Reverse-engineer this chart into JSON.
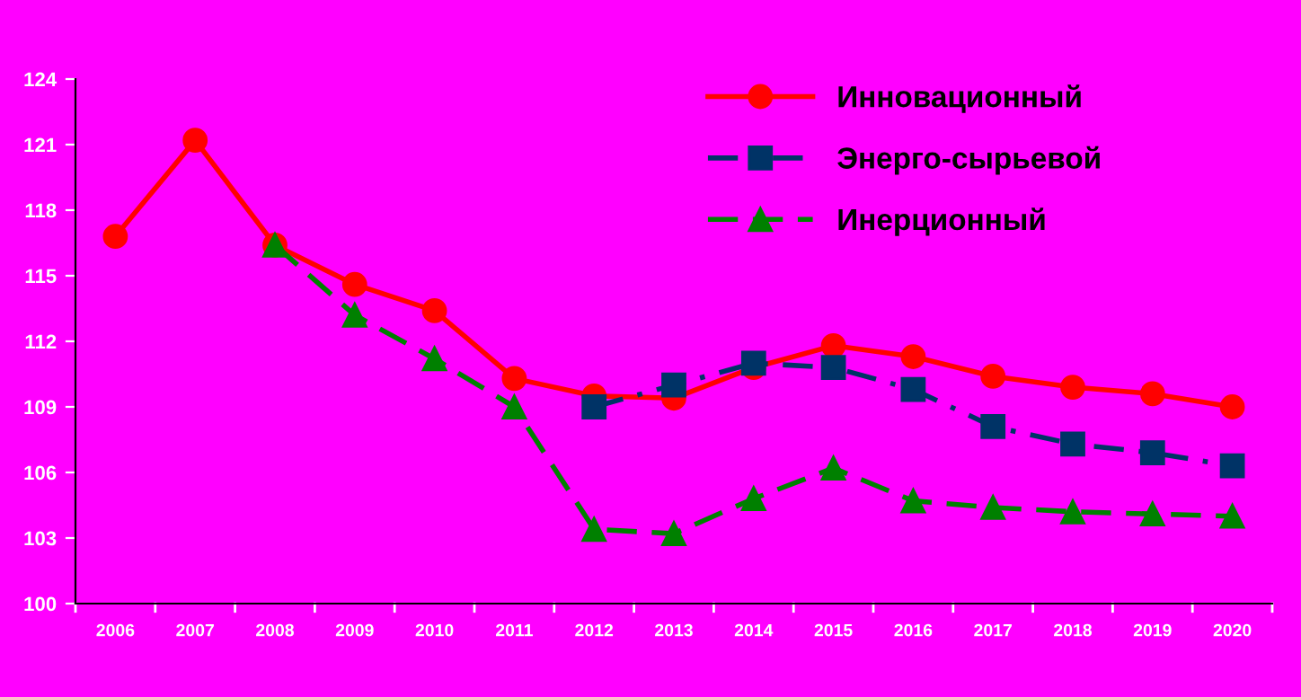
{
  "chart_data": {
    "type": "line",
    "categories": [
      "2006",
      "2007",
      "2008",
      "2009",
      "2010",
      "2011",
      "2012",
      "2013",
      "2014",
      "2015",
      "2016",
      "2017",
      "2018",
      "2019",
      "2020"
    ],
    "ylim": [
      100,
      124
    ],
    "yticks": [
      100,
      103,
      106,
      109,
      112,
      115,
      118,
      121,
      124
    ],
    "grid": false,
    "legend": "top right",
    "series": [
      {
        "name": "Инновационный",
        "color": "#ff0000",
        "marker": "circle",
        "line_style": "solid",
        "values": [
          116.8,
          121.2,
          116.4,
          114.6,
          113.4,
          110.3,
          109.5,
          109.4,
          110.8,
          111.8,
          111.3,
          110.4,
          109.9,
          109.6,
          109.0
        ]
      },
      {
        "name": "Энерго-сырьевой",
        "color": "#003366",
        "marker": "square",
        "line_style": "dashdot",
        "values": [
          null,
          null,
          null,
          null,
          null,
          null,
          109.0,
          110.0,
          111.0,
          110.8,
          109.8,
          108.1,
          107.3,
          106.9,
          106.3
        ]
      },
      {
        "name": "Инерционный",
        "color": "#008000",
        "marker": "triangle",
        "line_style": "dashed",
        "values": [
          null,
          null,
          116.4,
          113.2,
          111.2,
          109.0,
          103.4,
          103.2,
          104.8,
          106.2,
          104.7,
          104.4,
          104.2,
          104.1,
          104.0
        ]
      }
    ]
  }
}
